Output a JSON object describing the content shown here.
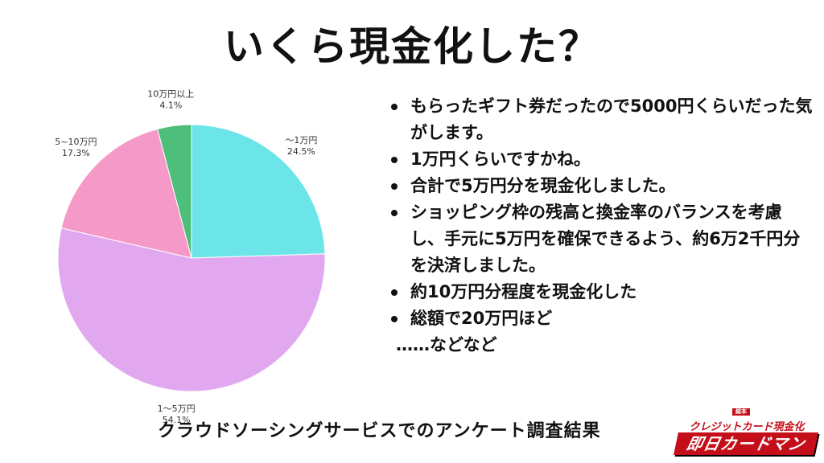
{
  "title": "いくら現金化した？",
  "chart_data": {
    "type": "pie",
    "title": "",
    "start_angle_deg": 0,
    "direction": "clockwise",
    "slices": [
      {
        "label": "～1万円",
        "value_label": "24.5%",
        "value": 24.5,
        "color": "#6ce5e8"
      },
      {
        "label": "1～5万円",
        "value_label": "54.1%",
        "value": 54.1,
        "color": "#e1a8f0"
      },
      {
        "label": "5~10万円",
        "value_label": "17.3%",
        "value": 17.3,
        "color": "#f59ac8"
      },
      {
        "label": "10万円以上",
        "value_label": "4.1%",
        "value": 4.1,
        "color": "#4dbf7a"
      }
    ]
  },
  "bullets": [
    "もらったギフト券だったので5000円くらいだった気がします。",
    "1万円くらいですかね。",
    "合計で5万円分を現金化しました。",
    "ショッピング枠の残高と換金率のバランスを考慮し、手元に5万円を確保できるよう、約6万2千円分を決済しました。",
    "約10万円分程度を現金化した",
    "総額で20万円ほど"
  ],
  "closing_note": "……などなど",
  "footer": "クラウドソーシングサービスでのアンケート調査結果",
  "logo": {
    "tag": "総本",
    "top": "クレジットカード現金化",
    "bottom": "即日カードマン"
  }
}
